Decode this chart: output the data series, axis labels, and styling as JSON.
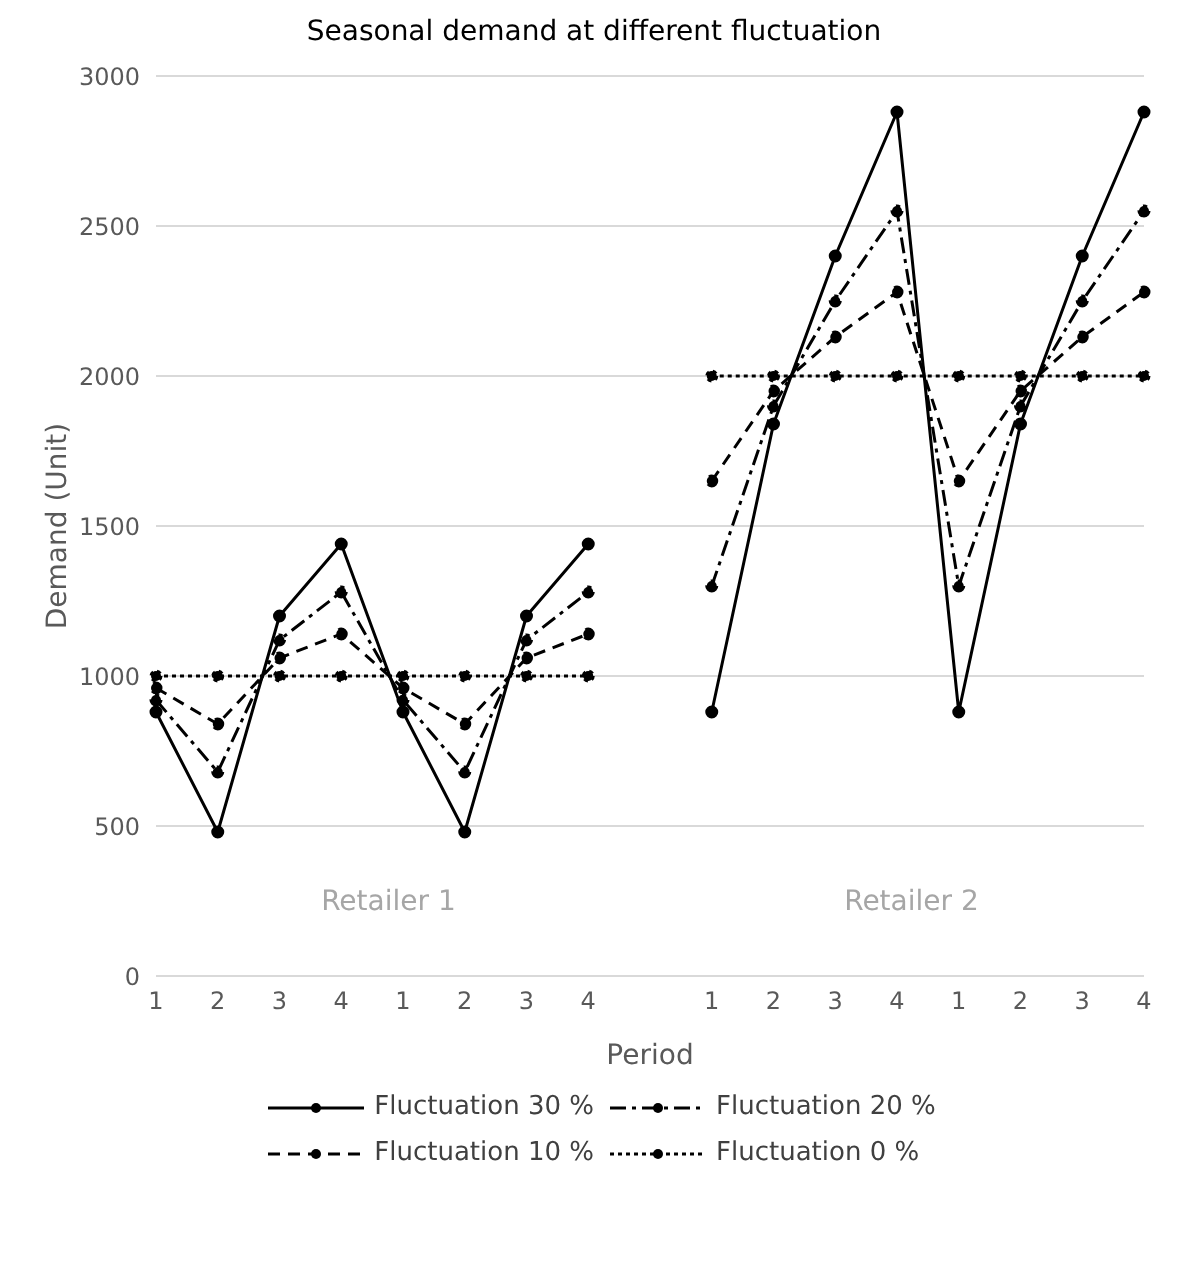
{
  "chart_data": {
    "type": "line",
    "title": "Seasonal demand at different fluctuation",
    "xlabel": "Period",
    "ylabel": "Demand (Unit)",
    "categories": [
      "1",
      "2",
      "3",
      "4",
      "1",
      "2",
      "3",
      "4",
      null,
      "1",
      "2",
      "3",
      "4",
      "1",
      "2",
      "3",
      "4"
    ],
    "series": [
      {
        "name": "Fluctuation 30 %",
        "color": "#000000",
        "line_style": "solid",
        "values": [
          880,
          480,
          1200,
          1440,
          880,
          480,
          1200,
          1440,
          null,
          880,
          1840,
          2400,
          2880,
          880,
          1840,
          2400,
          2880
        ]
      },
      {
        "name": "Fluctuation 20 %",
        "color": "#000000",
        "line_style": "dashdot",
        "values": [
          920,
          680,
          1120,
          1280,
          920,
          680,
          1120,
          1280,
          null,
          1300,
          1900,
          2250,
          2550,
          1300,
          1900,
          2250,
          2550
        ]
      },
      {
        "name": "Fluctuation 10 %",
        "color": "#000000",
        "line_style": "dashed",
        "values": [
          960,
          840,
          1060,
          1140,
          960,
          840,
          1060,
          1140,
          null,
          1650,
          1950,
          2130,
          2280,
          1650,
          1950,
          2130,
          2280
        ]
      },
      {
        "name": "Fluctuation 0 %",
        "color": "#000000",
        "line_style": "dotted",
        "values": [
          1000,
          1000,
          1000,
          1000,
          1000,
          1000,
          1000,
          1000,
          null,
          2000,
          2000,
          2000,
          2000,
          2000,
          2000,
          2000,
          2000
        ]
      }
    ],
    "ylim": [
      0,
      3000
    ],
    "yticks": [
      0,
      500,
      1000,
      1500,
      2000,
      2500,
      3000
    ],
    "grid": "y",
    "legend": "bottom",
    "marker": "circle",
    "annotations": [
      "Retailer 1",
      "Retailer 2"
    ]
  }
}
